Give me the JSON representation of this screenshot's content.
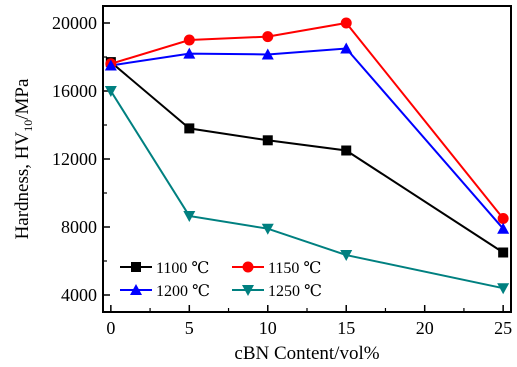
{
  "chart_data": {
    "type": "line",
    "xlabel": "cBN Content/vol%",
    "ylabel_prefix": "Hardness, HV",
    "ylabel_subscript": "10",
    "ylabel_suffix": "/MPa",
    "xlim": [
      -0.5,
      25.5
    ],
    "ylim": [
      3000,
      21000
    ],
    "xticks": [
      0,
      5,
      10,
      15,
      20,
      25
    ],
    "yticks": [
      4000,
      8000,
      12000,
      16000,
      20000
    ],
    "xtick_labels": [
      "0",
      "5",
      "10",
      "15",
      "20",
      "25"
    ],
    "ytick_labels": [
      "4000",
      "8000",
      "12000",
      "16000",
      "20000"
    ],
    "grid": false,
    "legend_position": "bottom-left",
    "x": [
      0,
      5,
      10,
      15,
      25
    ],
    "series": [
      {
        "name": "1100 ℃",
        "color": "#000000",
        "marker": "square",
        "values": [
          17700,
          13800,
          13100,
          12500,
          6500
        ]
      },
      {
        "name": "1150 ℃",
        "color": "#ff0000",
        "marker": "circle",
        "values": [
          17600,
          19000,
          19200,
          20000,
          8500
        ]
      },
      {
        "name": "1200 ℃",
        "color": "#0000ff",
        "marker": "triangle-up",
        "values": [
          17500,
          18200,
          18150,
          18500,
          7900
        ]
      },
      {
        "name": "1250 ℃",
        "color": "#008080",
        "marker": "triangle-down",
        "values": [
          16000,
          8650,
          7900,
          6350,
          4400
        ]
      }
    ]
  }
}
